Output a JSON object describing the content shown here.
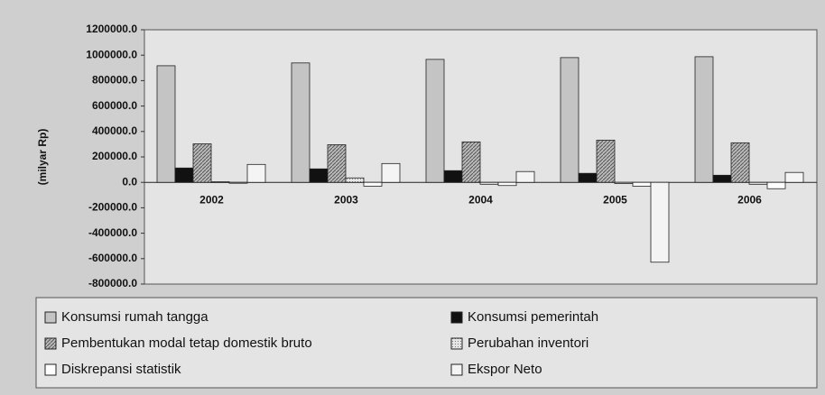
{
  "chart_data": {
    "type": "bar",
    "y_label": "(milyar Rp)",
    "categories": [
      "2002",
      "2003",
      "2004",
      "2005",
      "2006"
    ],
    "series": [
      {
        "name": "Konsumsi rumah tangga",
        "color": "#c4c4c4",
        "values": [
          917000,
          939000,
          967000,
          981000,
          988000
        ]
      },
      {
        "name": "Konsumsi pemerintah",
        "color": "#111111",
        "values": [
          113000,
          106000,
          92000,
          71000,
          56000
        ]
      },
      {
        "name": "Pembentukan modal tetap domestik bruto",
        "color": "#9a9a9a",
        "values": [
          303000,
          296000,
          318000,
          332000,
          311000
        ]
      },
      {
        "name": "Perubahan inventori",
        "color": "#dddddd",
        "values": [
          5000,
          35000,
          -15000,
          -10000,
          -15000
        ]
      },
      {
        "name": "Diskrepansi statistik",
        "color": "#ffffff",
        "values": [
          -5000,
          -30000,
          -25000,
          -30000,
          -50000
        ]
      },
      {
        "name": "Ekspor Neto",
        "color": "#f4f4f4",
        "values": [
          141000,
          148000,
          85000,
          -628000,
          78000
        ]
      }
    ],
    "ylim": [
      -800000,
      1200000
    ],
    "yticks": [
      {
        "value": -800000,
        "label": "-800000.0"
      },
      {
        "value": -600000,
        "label": "-600000.0"
      },
      {
        "value": -400000,
        "label": "-400000.0"
      },
      {
        "value": -200000,
        "label": "-200000.0"
      },
      {
        "value": 0,
        "label": "0.0"
      },
      {
        "value": 200000,
        "label": "200000.0"
      },
      {
        "value": 400000,
        "label": "400000.0"
      },
      {
        "value": 600000,
        "label": "600000.0"
      },
      {
        "value": 800000,
        "label": "800000.0"
      },
      {
        "value": 1000000,
        "label": "1000000.0"
      },
      {
        "value": 1200000,
        "label": "1200000.0"
      }
    ],
    "grid": false,
    "legend": "bottom"
  }
}
